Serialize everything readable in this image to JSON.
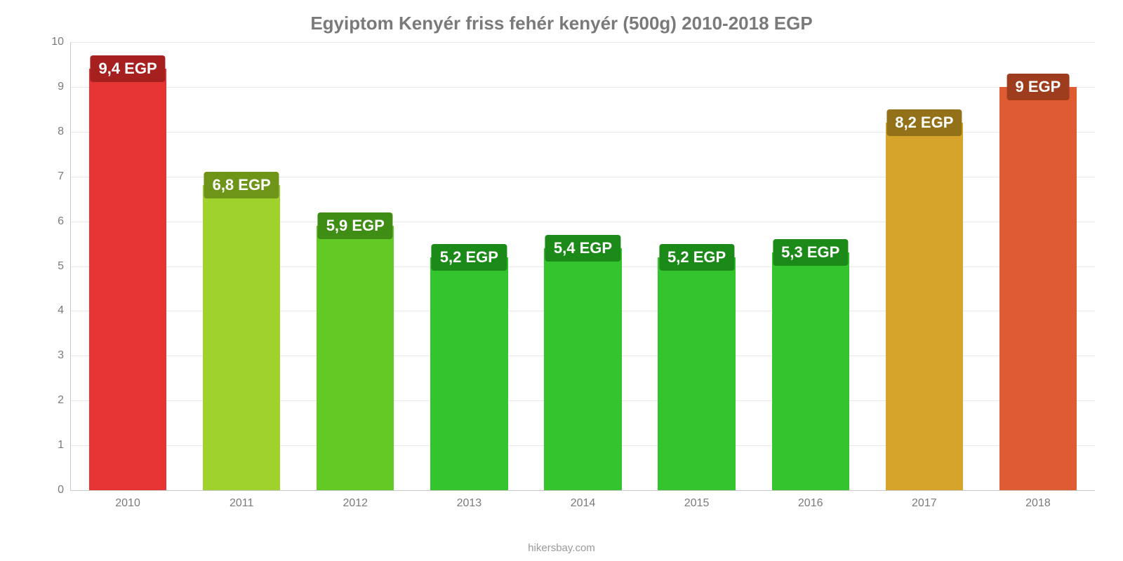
{
  "chart": {
    "type": "bar",
    "title": "Egyiptom Kenyér friss fehér kenyér (500g) 2010-2018 EGP",
    "title_fontsize": 26,
    "title_color": "#7a7a7a",
    "background_color": "#ffffff",
    "grid_color": "#e9e9e9",
    "axis_color": "#c8c8c8",
    "tick_color": "#7a7a7a",
    "tick_fontsize": 16,
    "ylim": [
      0,
      10
    ],
    "ytick_step": 1,
    "bar_width_pct": 68,
    "value_label_fontsize": 22,
    "categories": [
      "2010",
      "2011",
      "2012",
      "2013",
      "2014",
      "2015",
      "2016",
      "2017",
      "2018"
    ],
    "values": [
      9.4,
      6.8,
      5.9,
      5.2,
      5.4,
      5.2,
      5.3,
      8.2,
      9.0
    ],
    "value_labels": [
      "9,4 EGP",
      "6,8 EGP",
      "5,9 EGP",
      "5,2 EGP",
      "5,4 EGP",
      "5,2 EGP",
      "5,3 EGP",
      "8,2 EGP",
      "9 EGP"
    ],
    "bar_colors": [
      "#e63434",
      "#a0d22d",
      "#63c925",
      "#33c42e",
      "#33c42e",
      "#33c42e",
      "#33c42e",
      "#d6a42a",
      "#df5b32"
    ],
    "label_badge_colors": [
      "#a62020",
      "#6e9418",
      "#3f8d14",
      "#1c8a18",
      "#1c8a18",
      "#1c8a18",
      "#1c8a18",
      "#937118",
      "#9e3d1e"
    ]
  },
  "attribution": "hikersbay.com"
}
